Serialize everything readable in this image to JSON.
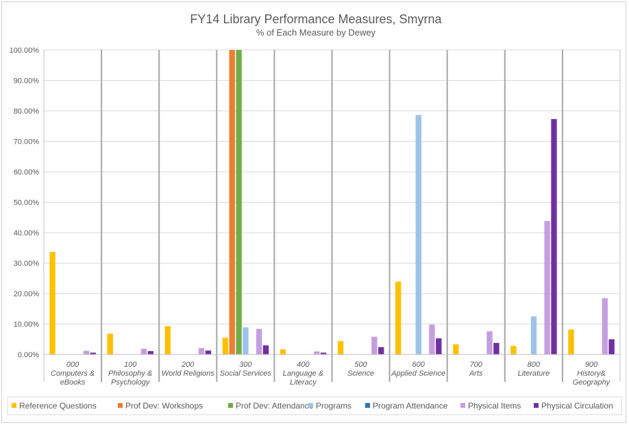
{
  "chart_data": {
    "type": "bar",
    "title": "FY14 Library Performance Measures, Smyrna",
    "subtitle": "% of Each Measure by Dewey",
    "xlabel": "",
    "ylabel": "",
    "ylim": [
      0,
      100
    ],
    "yticks": [
      "0.00%",
      "10.00%",
      "20.00%",
      "30.00%",
      "40.00%",
      "50.00%",
      "60.00%",
      "70.00%",
      "80.00%",
      "90.00%",
      "100.00%"
    ],
    "categories": [
      [
        "000",
        "Computers &",
        "eBooks"
      ],
      [
        "100",
        "Philosophy &",
        "Psychology"
      ],
      [
        "200",
        "World Religions"
      ],
      [
        "300",
        "Social Services"
      ],
      [
        "400",
        "Language &",
        "Literacy"
      ],
      [
        "500",
        "Science"
      ],
      [
        "600",
        "Applied Science"
      ],
      [
        "700",
        "Arts"
      ],
      [
        "800",
        "Literature"
      ],
      [
        "900",
        "History&",
        "Geography"
      ]
    ],
    "series": [
      {
        "name": "Reference Questions",
        "color": "#FFC000",
        "values": [
          33.7,
          6.8,
          9.3,
          5.5,
          1.7,
          4.4,
          23.9,
          3.3,
          2.8,
          8.2
        ]
      },
      {
        "name": "Prof Dev: Workshops",
        "color": "#ED7D31",
        "values": [
          0,
          0,
          0,
          100,
          0,
          0,
          0,
          0,
          0,
          0
        ]
      },
      {
        "name": "Prof Dev: Attendance",
        "color": "#70AD47",
        "values": [
          0,
          0,
          0,
          100,
          0,
          0,
          0,
          0,
          0,
          0
        ]
      },
      {
        "name": "Programs",
        "color": "#9DC3E6",
        "values": [
          0,
          0,
          0,
          8.9,
          0,
          0,
          78.6,
          0,
          12.5,
          0
        ]
      },
      {
        "name": "Program Attendance",
        "color": "#2E75B6",
        "values": [
          0,
          0,
          0,
          0,
          0,
          0,
          0,
          0,
          0,
          0
        ]
      },
      {
        "name": "Physical Items",
        "color": "#C59EE0",
        "values": [
          1.2,
          1.9,
          2.1,
          8.4,
          1.0,
          5.8,
          9.8,
          7.6,
          43.8,
          18.5
        ]
      },
      {
        "name": "Physical Circulation",
        "color": "#7030A0",
        "values": [
          0.6,
          1.1,
          1.3,
          3.0,
          0.6,
          2.4,
          5.3,
          3.8,
          77.3,
          5.0
        ]
      }
    ],
    "grid": true,
    "legend": "bottom"
  }
}
